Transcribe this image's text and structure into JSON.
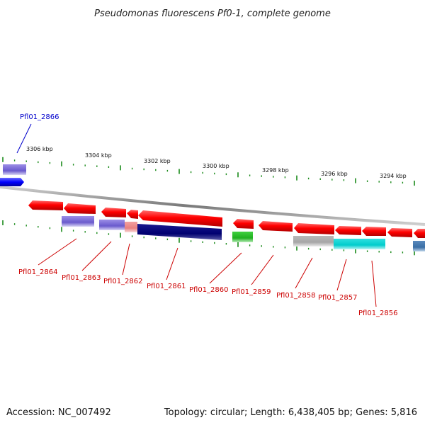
{
  "header": {
    "title": "Pseudomonas fluorescens Pf0-1, complete genome"
  },
  "footer": {
    "accession": "Accession: NC_007492",
    "summary": "Topology: circular; Length: 6,438,405 bp; Genes: 5,816"
  },
  "colors": {
    "background": "#ffffff",
    "backbone": "#888888",
    "forward_gene": "#ff0000",
    "tick": "#1a8a1a",
    "label_highlight": "#0000cc",
    "label_default": "#cc0000",
    "leader_highlight": "#0000cc",
    "leader_default": "#cc0000"
  },
  "axis": {
    "unit": "kbp",
    "labels": [
      {
        "text": "3306 kbp"
      },
      {
        "text": "3304 kbp"
      },
      {
        "text": "3302 kbp"
      },
      {
        "text": "3300 kbp"
      },
      {
        "text": "3298 kbp"
      },
      {
        "text": "3296 kbp"
      },
      {
        "text": "3294 kbp"
      }
    ]
  },
  "genes": [
    {
      "label": "Pfl01_2866",
      "highlighted": true
    },
    {
      "label": "Pfl01_2864",
      "highlighted": false
    },
    {
      "label": "Pfl01_2863",
      "highlighted": false
    },
    {
      "label": "Pfl01_2862",
      "highlighted": false
    },
    {
      "label": "Pfl01_2861",
      "highlighted": false
    },
    {
      "label": "Pfl01_2860",
      "highlighted": false
    },
    {
      "label": "Pfl01_2859",
      "highlighted": false
    },
    {
      "label": "Pfl01_2858",
      "highlighted": false
    },
    {
      "label": "Pfl01_2857",
      "highlighted": false
    },
    {
      "label": "Pfl01_2856",
      "highlighted": false
    }
  ]
}
